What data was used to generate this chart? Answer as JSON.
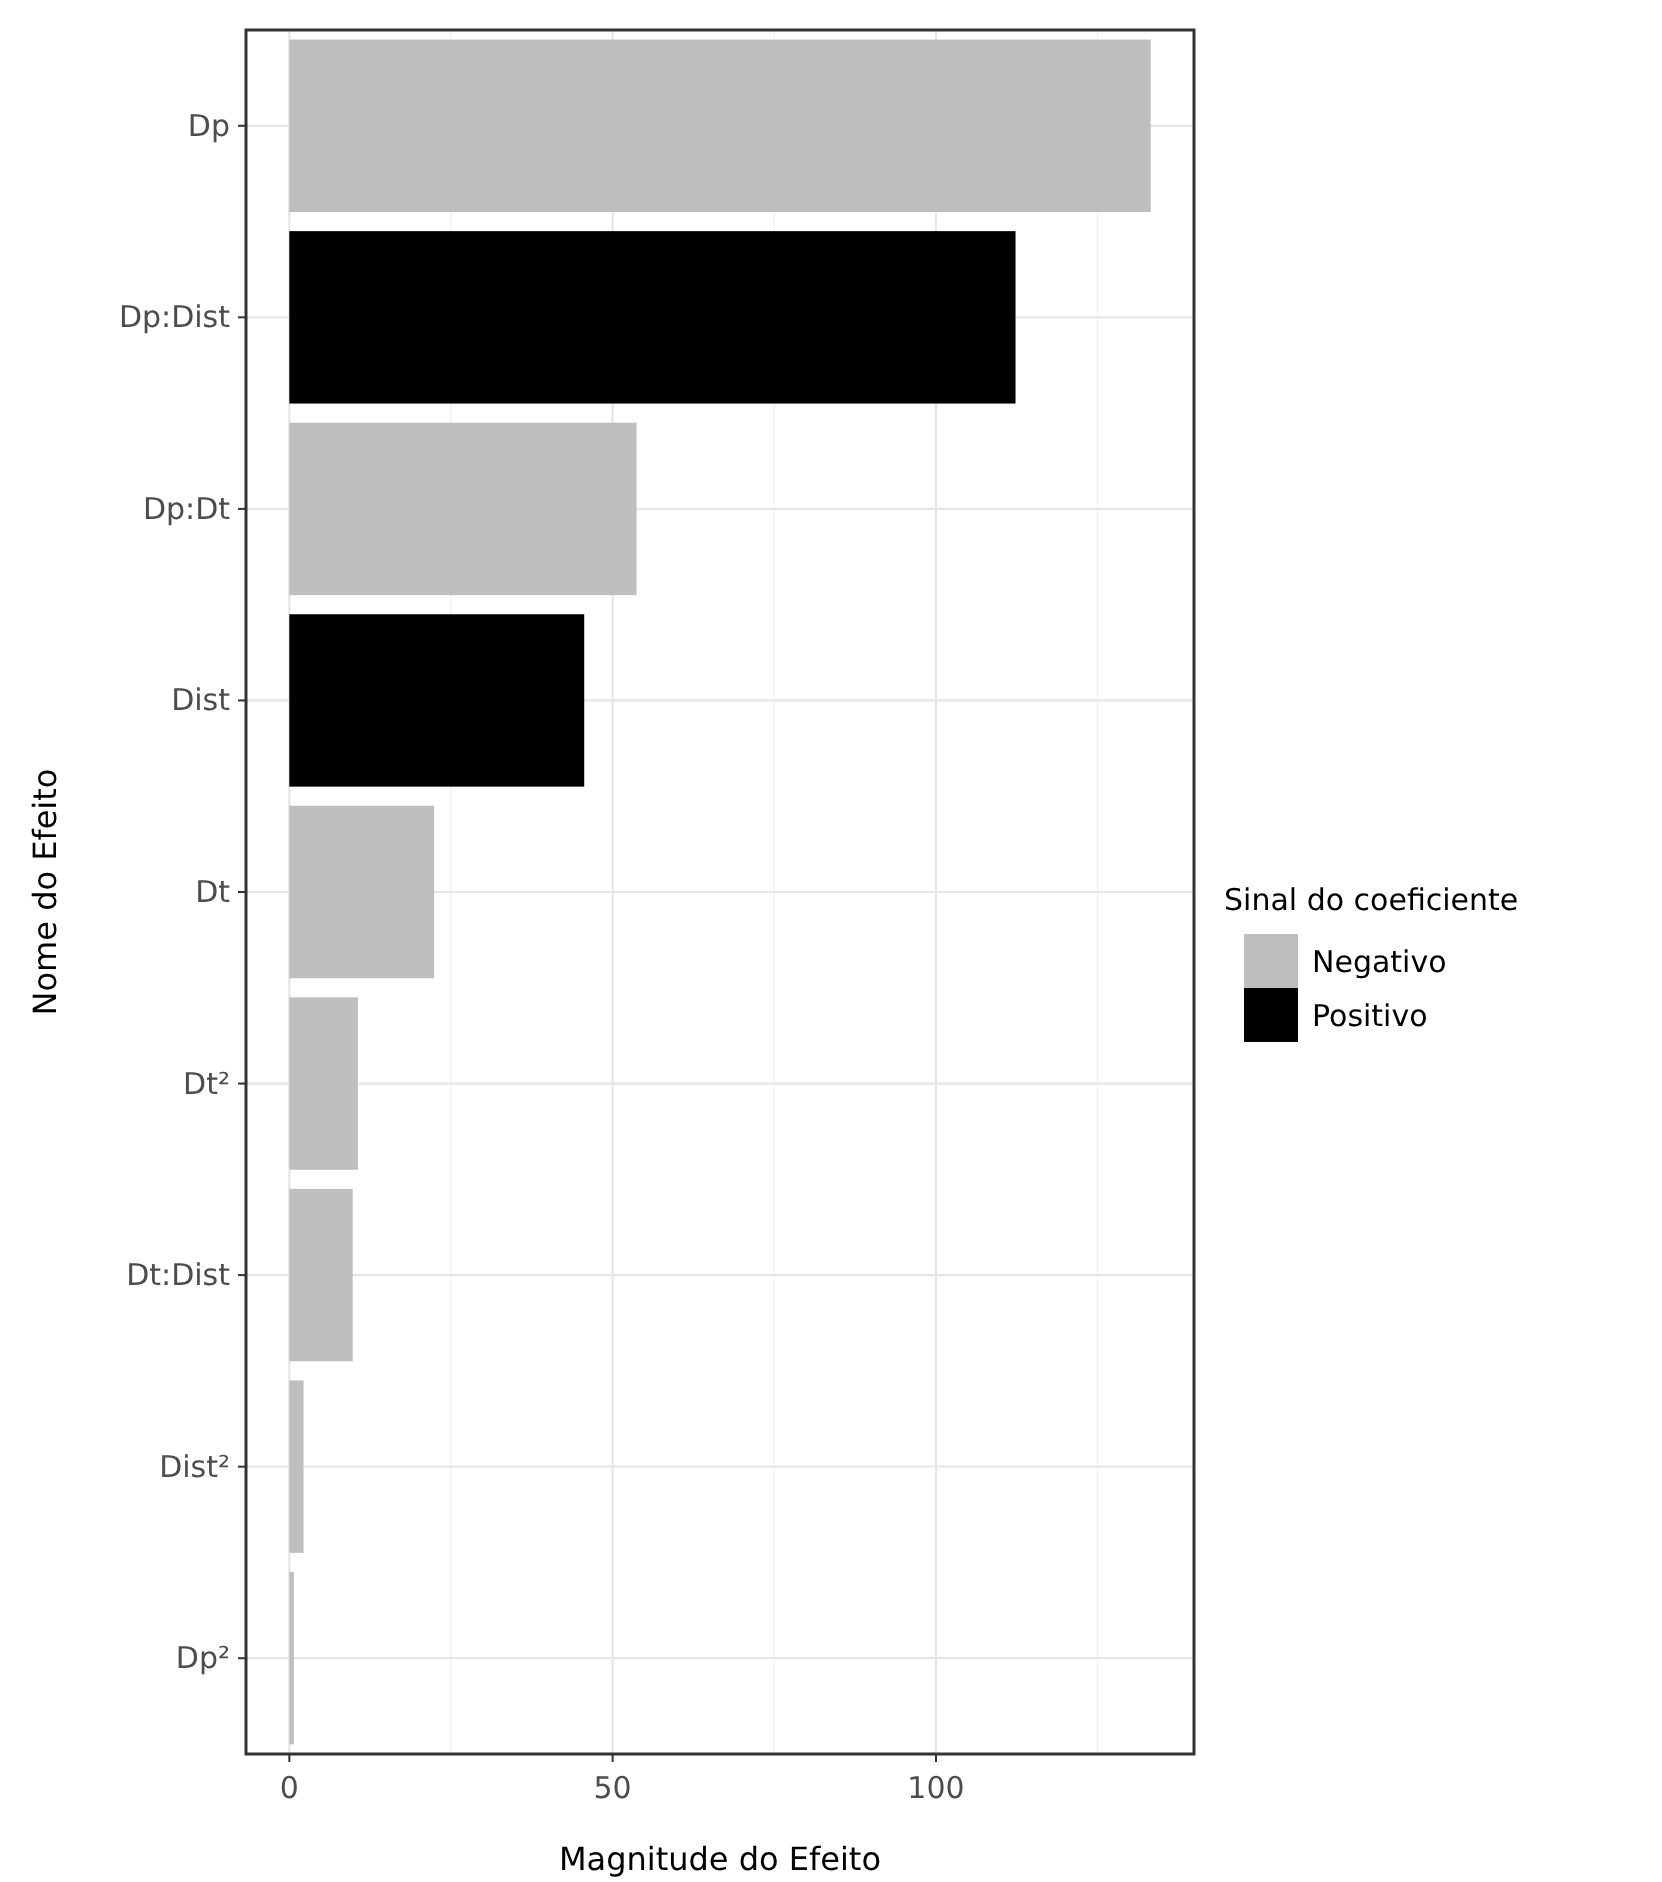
{
  "chart_data": {
    "type": "bar",
    "orientation": "horizontal",
    "xlabel": "Magnitude do Efeito",
    "ylabel": "Nome do Efeito",
    "legend_title": "Sinal do coeficiente",
    "legend": "right",
    "grid": true,
    "categories": [
      "Dp",
      "Dp:Dist",
      "Dp:Dt",
      "Dist",
      "Dt",
      "Dt²",
      "Dt:Dist",
      "Dist²",
      "Dp²"
    ],
    "series": [
      {
        "name": "Negativo",
        "color": "#bebebe",
        "values": [
          133.2,
          null,
          53.7,
          null,
          22.4,
          10.6,
          9.8,
          2.2,
          0.7
        ]
      },
      {
        "name": "Positivo",
        "color": "#000000",
        "values": [
          null,
          112.3,
          null,
          45.6,
          null,
          null,
          null,
          null,
          null
        ]
      }
    ],
    "xlim": [
      -6.7,
      139.9
    ],
    "xticks": [
      0,
      50,
      100
    ]
  }
}
